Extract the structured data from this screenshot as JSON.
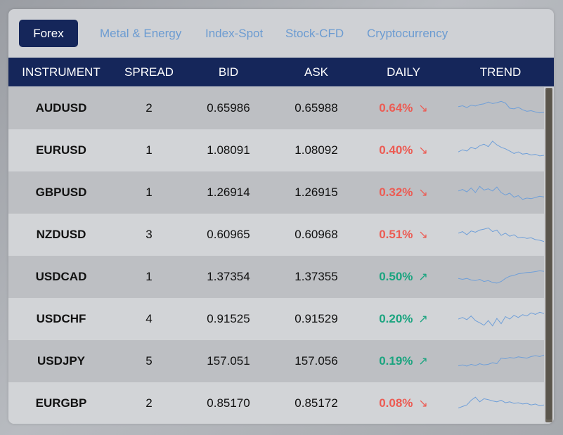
{
  "tabs": [
    {
      "label": "Forex",
      "active": true
    },
    {
      "label": "Metal & Energy",
      "active": false
    },
    {
      "label": "Index-Spot",
      "active": false
    },
    {
      "label": "Stock-CFD",
      "active": false
    },
    {
      "label": "Cryptocurrency",
      "active": false
    }
  ],
  "table": {
    "headers": [
      "INSTRUMENT",
      "SPREAD",
      "BID",
      "ASK",
      "DAILY",
      "TREND"
    ],
    "rows": [
      {
        "instrument": "AUDUSD",
        "spread": "2",
        "bid": "0.65986",
        "ask": "0.65988",
        "daily": "0.64%",
        "direction": "down",
        "arrow": "↘",
        "trend": [
          0.45,
          0.42,
          0.48,
          0.4,
          0.43,
          0.38,
          0.36,
          0.3,
          0.35,
          0.32,
          0.28,
          0.33,
          0.5,
          0.52,
          0.47,
          0.55,
          0.6,
          0.58,
          0.62,
          0.65,
          0.63
        ]
      },
      {
        "instrument": "EURUSD",
        "spread": "1",
        "bid": "1.08091",
        "ask": "1.08092",
        "daily": "0.40%",
        "direction": "down",
        "arrow": "↘",
        "trend": [
          0.55,
          0.48,
          0.52,
          0.4,
          0.45,
          0.35,
          0.3,
          0.38,
          0.2,
          0.32,
          0.4,
          0.45,
          0.52,
          0.6,
          0.55,
          0.62,
          0.6,
          0.65,
          0.63,
          0.68,
          0.66
        ]
      },
      {
        "instrument": "GBPUSD",
        "spread": "1",
        "bid": "1.26914",
        "ask": "1.26915",
        "daily": "0.32%",
        "direction": "down",
        "arrow": "↘",
        "trend": [
          0.45,
          0.4,
          0.48,
          0.35,
          0.5,
          0.3,
          0.42,
          0.38,
          0.45,
          0.32,
          0.5,
          0.58,
          0.52,
          0.65,
          0.6,
          0.72,
          0.68,
          0.7,
          0.66,
          0.62,
          0.64
        ]
      },
      {
        "instrument": "NZDUSD",
        "spread": "3",
        "bid": "0.60965",
        "ask": "0.60968",
        "daily": "0.51%",
        "direction": "down",
        "arrow": "↘",
        "trend": [
          0.45,
          0.4,
          0.5,
          0.38,
          0.42,
          0.35,
          0.32,
          0.28,
          0.4,
          0.35,
          0.52,
          0.45,
          0.55,
          0.5,
          0.6,
          0.58,
          0.62,
          0.6,
          0.66,
          0.68,
          0.72
        ]
      },
      {
        "instrument": "USDCAD",
        "spread": "1",
        "bid": "1.37354",
        "ask": "1.37355",
        "daily": "0.50%",
        "direction": "up",
        "arrow": "↗",
        "trend": [
          0.55,
          0.58,
          0.55,
          0.6,
          0.62,
          0.58,
          0.65,
          0.62,
          0.68,
          0.7,
          0.65,
          0.55,
          0.48,
          0.45,
          0.4,
          0.38,
          0.36,
          0.35,
          0.33,
          0.3,
          0.32
        ]
      },
      {
        "instrument": "USDCHF",
        "spread": "4",
        "bid": "0.91525",
        "ask": "0.91529",
        "daily": "0.20%",
        "direction": "up",
        "arrow": "↗",
        "trend": [
          0.5,
          0.45,
          0.52,
          0.4,
          0.55,
          0.62,
          0.7,
          0.55,
          0.72,
          0.48,
          0.65,
          0.42,
          0.5,
          0.38,
          0.45,
          0.36,
          0.4,
          0.3,
          0.35,
          0.28,
          0.32
        ]
      },
      {
        "instrument": "USDJPY",
        "spread": "5",
        "bid": "157.051",
        "ask": "157.056",
        "daily": "0.19%",
        "direction": "up",
        "arrow": "↗",
        "trend": [
          0.65,
          0.62,
          0.66,
          0.6,
          0.64,
          0.58,
          0.62,
          0.6,
          0.55,
          0.58,
          0.4,
          0.42,
          0.38,
          0.4,
          0.36,
          0.38,
          0.4,
          0.35,
          0.32,
          0.35,
          0.3
        ]
      },
      {
        "instrument": "EURGBP",
        "spread": "2",
        "bid": "0.85170",
        "ask": "0.85172",
        "daily": "0.08%",
        "direction": "down",
        "arrow": "↘",
        "trend": [
          0.65,
          0.6,
          0.55,
          0.4,
          0.3,
          0.45,
          0.35,
          0.38,
          0.42,
          0.45,
          0.4,
          0.48,
          0.45,
          0.5,
          0.48,
          0.52,
          0.5,
          0.55,
          0.52,
          0.58,
          0.55
        ]
      }
    ]
  },
  "colors": {
    "header_bg": "#15265a",
    "tab_inactive": "#6b9bd1",
    "down": "#ec5b53",
    "up": "#1aa47f",
    "trend_line": "#6f9fd8"
  }
}
